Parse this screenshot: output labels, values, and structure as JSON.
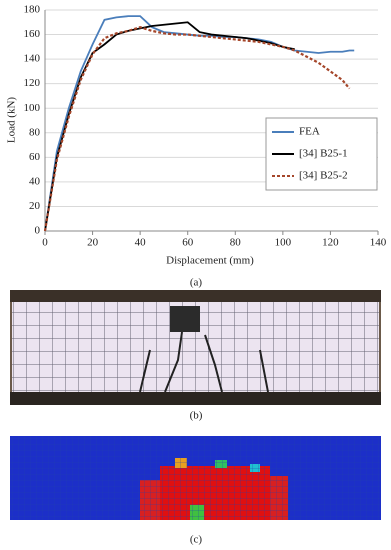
{
  "chart_data": {
    "type": "line",
    "xlabel": "Displacement  (mm)",
    "ylabel": "Load (kN)",
    "caption": "(a)",
    "x": [
      0,
      5,
      10,
      15,
      20,
      25,
      30,
      35,
      40,
      45,
      50,
      55,
      60,
      65,
      70,
      75,
      80,
      85,
      90,
      95,
      100,
      105,
      110,
      115,
      120,
      125,
      128,
      130
    ],
    "series": [
      {
        "name": "FEA",
        "color": "#4a7ebb",
        "dashed": false,
        "values": [
          0,
          65,
          100,
          130,
          152,
          172,
          174,
          175,
          175,
          166,
          162,
          161,
          160,
          159,
          159,
          158,
          158,
          157,
          156,
          154,
          150,
          147,
          146,
          145,
          146,
          146,
          147,
          147
        ]
      },
      {
        "name": "[34] B25-1",
        "color": "#000000",
        "dashed": false,
        "values": [
          0,
          60,
          95,
          125,
          145,
          152,
          160,
          163,
          165,
          167,
          168,
          169,
          170,
          162,
          160,
          159,
          158,
          157,
          155,
          153,
          150,
          148,
          null,
          null,
          null,
          null,
          null,
          null
        ]
      },
      {
        "name": "[34] B25-2",
        "color": "#a5462a",
        "dashed": true,
        "values": [
          0,
          58,
          93,
          123,
          144,
          157,
          161,
          163,
          166,
          163,
          161,
          160,
          160,
          159,
          158,
          157,
          156,
          155,
          154,
          152,
          150,
          147,
          142,
          137,
          130,
          123,
          116,
          null
        ]
      }
    ],
    "xlim": [
      0,
      140
    ],
    "xticks": [
      0,
      20,
      40,
      60,
      80,
      100,
      120,
      140
    ],
    "ylim": [
      0,
      180
    ],
    "yticks": [
      0,
      20,
      40,
      60,
      80,
      100,
      120,
      140,
      160,
      180
    ],
    "grid": true,
    "legend": "right"
  },
  "panels": {
    "photo_caption": "(b)",
    "contour_caption": "(c)"
  }
}
